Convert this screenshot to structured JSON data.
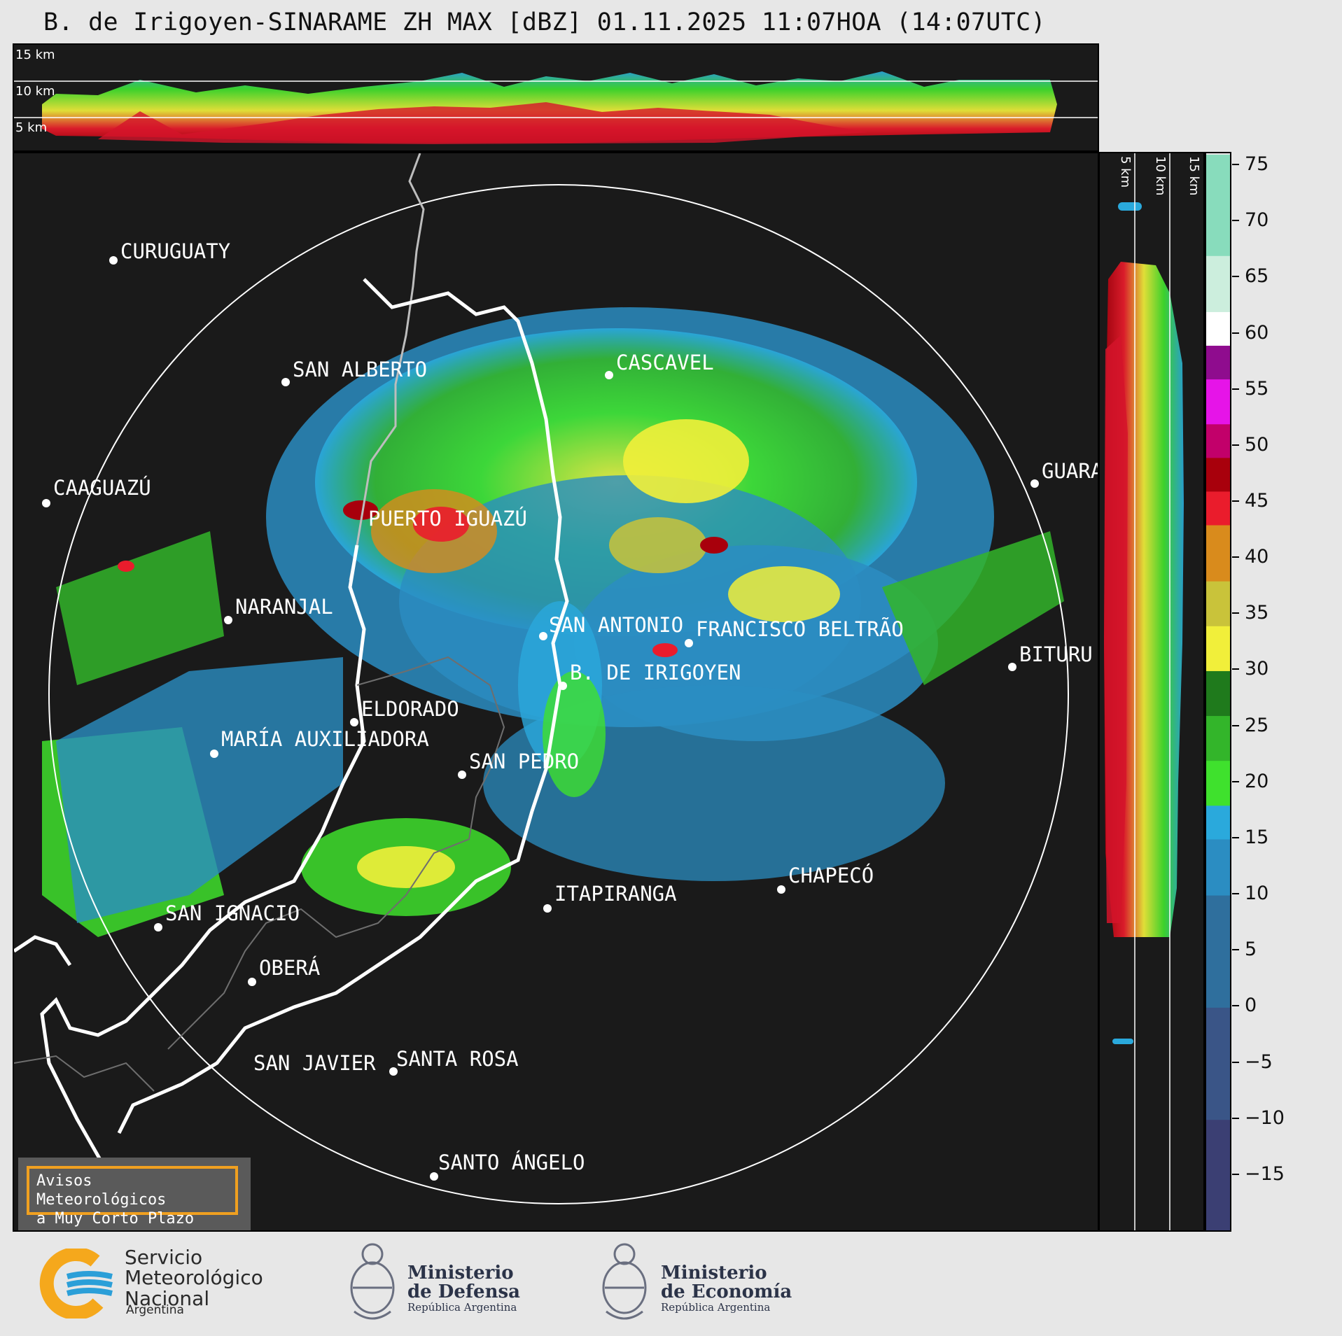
{
  "title": "B. de Irigoyen-SINARAME ZH MAX [dBZ] 01.11.2025 11:07HOA (14:07UTC)",
  "top_panel": {
    "height_labels": [
      "15 km",
      "10 km",
      "5 km"
    ]
  },
  "side_panel": {
    "height_labels": [
      "5 km",
      "10 km",
      "15 km"
    ]
  },
  "colorbar": {
    "unit": "dBZ",
    "ticks": [
      "75",
      "70",
      "65",
      "60",
      "55",
      "50",
      "45",
      "40",
      "35",
      "30",
      "25",
      "20",
      "15",
      "10",
      "5",
      "0",
      "−5",
      "−10",
      "−15"
    ],
    "tick_values": [
      75,
      70,
      65,
      60,
      55,
      50,
      45,
      40,
      35,
      30,
      25,
      20,
      15,
      10,
      5,
      0,
      -5,
      -10,
      -15
    ],
    "range": [
      -20,
      76
    ],
    "bands": [
      {
        "from": -20,
        "to": -10,
        "color": "#3b3f73"
      },
      {
        "from": -10,
        "to": 0,
        "color": "#3a5587"
      },
      {
        "from": 0,
        "to": 10,
        "color": "#2f6f9d"
      },
      {
        "from": 10,
        "to": 15,
        "color": "#2b8dc2"
      },
      {
        "from": 15,
        "to": 18,
        "color": "#2aa9dc"
      },
      {
        "from": 18,
        "to": 22,
        "color": "#3fe12d"
      },
      {
        "from": 22,
        "to": 26,
        "color": "#33b52a"
      },
      {
        "from": 26,
        "to": 30,
        "color": "#1f7a1c"
      },
      {
        "from": 30,
        "to": 34,
        "color": "#f1ef3a"
      },
      {
        "from": 34,
        "to": 38,
        "color": "#c9c33a"
      },
      {
        "from": 38,
        "to": 43,
        "color": "#d98b1c"
      },
      {
        "from": 43,
        "to": 46,
        "color": "#ea1c2c"
      },
      {
        "from": 46,
        "to": 49,
        "color": "#a8000c"
      },
      {
        "from": 49,
        "to": 52,
        "color": "#c2006a"
      },
      {
        "from": 52,
        "to": 56,
        "color": "#e614e8"
      },
      {
        "from": 56,
        "to": 59,
        "color": "#8f0c8e"
      },
      {
        "from": 59,
        "to": 62,
        "color": "#ffffff"
      },
      {
        "from": 62,
        "to": 67,
        "color": "#cceedd"
      },
      {
        "from": 67,
        "to": 76,
        "color": "#88dcbc"
      }
    ]
  },
  "cities": [
    {
      "name": "CURUGUATY"
    },
    {
      "name": "SAN ALBERTO"
    },
    {
      "name": "CAAGUAZÚ"
    },
    {
      "name": "CASCAVEL"
    },
    {
      "name": "GUARA"
    },
    {
      "name": "PUERTO IGUAZÚ"
    },
    {
      "name": "NARANJAL"
    },
    {
      "name": "SAN ANTONIO"
    },
    {
      "name": "FRANCISCO BELTRÃO"
    },
    {
      "name": "BITURU"
    },
    {
      "name": "B. DE IRIGOYEN"
    },
    {
      "name": "ELDORADO"
    },
    {
      "name": "MARÍA AUXILIADORA"
    },
    {
      "name": "SAN PEDRO"
    },
    {
      "name": "ITAPIRANGA"
    },
    {
      "name": "CHAPECÓ"
    },
    {
      "name": "SAN IGNACIO"
    },
    {
      "name": "OBERÁ"
    },
    {
      "name": "SAN JAVIER"
    },
    {
      "name": "SANTA ROSA"
    },
    {
      "name": "SANTO ÁNGELO"
    }
  ],
  "notice": {
    "line1": "Avisos Meteorológicos",
    "line2": "a Muy Corto Plazo"
  },
  "logos": {
    "smn": {
      "line1": "Servicio",
      "line2": "Meteorológico",
      "line3": "Nacional",
      "country": "Argentina"
    },
    "defensa": {
      "line1": "Ministerio",
      "line2": "de Defensa",
      "country": "República Argentina"
    },
    "economia": {
      "line1": "Ministerio",
      "line2": "de Economía",
      "country": "República Argentina"
    }
  },
  "colors": {
    "background": "#e7e7e7",
    "panel": "#1a1a1a",
    "range_ring": "#ffffff",
    "notice_border": "#f0a020",
    "smn_orange": "#f5a81c",
    "smn_blue": "#2b9fd8"
  }
}
